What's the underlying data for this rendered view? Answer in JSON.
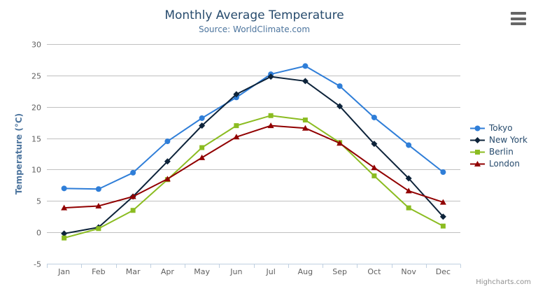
{
  "header": {
    "title": "Monthly Average Temperature",
    "subtitle": "Source: WorldClimate.com"
  },
  "yaxis": {
    "title": "Temperature (°C)"
  },
  "credits": {
    "label": "Highcharts.com"
  },
  "export_menu": {
    "icon": "hamburger-menu-icon"
  },
  "chart_data": {
    "type": "line",
    "title": "Monthly Average Temperature",
    "subtitle": "Source: WorldClimate.com",
    "categories": [
      "Jan",
      "Feb",
      "Mar",
      "Apr",
      "May",
      "Jun",
      "Jul",
      "Aug",
      "Sep",
      "Oct",
      "Nov",
      "Dec"
    ],
    "xlabel": "",
    "ylabel": "Temperature (°C)",
    "ylim": [
      -5,
      30
    ],
    "ytick_step": 5,
    "grid": true,
    "legend_position": "right",
    "series": [
      {
        "name": "Tokyo",
        "color": "#2f7ed8",
        "marker": "circle",
        "values": [
          7.0,
          6.9,
          9.5,
          14.5,
          18.2,
          21.5,
          25.2,
          26.5,
          23.3,
          18.3,
          13.9,
          9.6
        ]
      },
      {
        "name": "New York",
        "color": "#0d233a",
        "marker": "diamond",
        "values": [
          -0.2,
          0.8,
          5.7,
          11.3,
          17.0,
          22.0,
          24.8,
          24.1,
          20.1,
          14.1,
          8.6,
          2.5
        ]
      },
      {
        "name": "Berlin",
        "color": "#8bbc21",
        "marker": "square",
        "values": [
          -0.9,
          0.6,
          3.5,
          8.4,
          13.5,
          17.0,
          18.6,
          17.9,
          14.3,
          9.0,
          3.9,
          1.0
        ]
      },
      {
        "name": "London",
        "color": "#910000",
        "marker": "triangle",
        "values": [
          3.9,
          4.2,
          5.7,
          8.5,
          11.9,
          15.2,
          17.0,
          16.6,
          14.2,
          10.3,
          6.6,
          4.8
        ]
      }
    ],
    "colors": {
      "grid": "#c0c0c0",
      "axis_line": "#c0d0e0",
      "axis_label": "#606060",
      "title": "#274b6d",
      "subtitle": "#4d759e",
      "yaxis_title": "#4d759e",
      "legend_text": "#274b6d",
      "credits": "#909090",
      "export_icon": "#666666",
      "background": "#ffffff"
    }
  }
}
